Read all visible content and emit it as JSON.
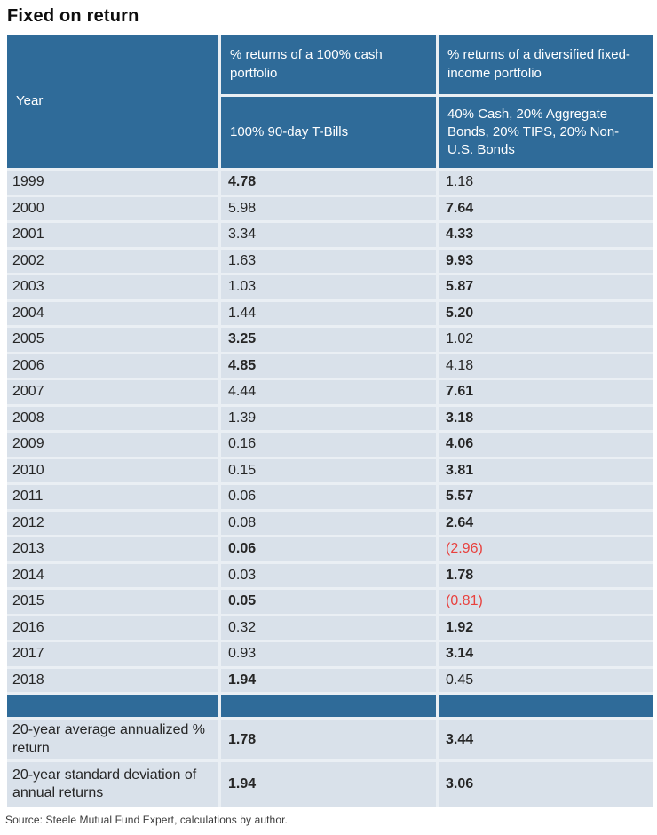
{
  "title": "Fixed on return",
  "source": "Source: Steele Mutual Fund Expert, calculations by author.",
  "colors": {
    "header_blue": "#2f6b99",
    "row_background": "#d9e1ea",
    "divider": "#eaeff4",
    "negative_red": "#e8413e"
  },
  "table": {
    "columns": {
      "year_label": "Year",
      "cash_group": "% returns of a 100% cash portfolio",
      "cash_sub": "100% 90-day T-Bills",
      "fixed_group": "% returns of a diversified fixed-income portfolio",
      "fixed_sub": "40% Cash, 20% Aggregate Bonds, 20% TIPS, 20% Non-U.S. Bonds"
    },
    "rows": [
      {
        "year": "1999",
        "cash": "4.78",
        "cash_bold": true,
        "fixed": "1.18",
        "fixed_bold": false,
        "fixed_negative": false
      },
      {
        "year": "2000",
        "cash": "5.98",
        "cash_bold": false,
        "fixed": "7.64",
        "fixed_bold": true,
        "fixed_negative": false
      },
      {
        "year": "2001",
        "cash": "3.34",
        "cash_bold": false,
        "fixed": "4.33",
        "fixed_bold": true,
        "fixed_negative": false
      },
      {
        "year": "2002",
        "cash": "1.63",
        "cash_bold": false,
        "fixed": "9.93",
        "fixed_bold": true,
        "fixed_negative": false
      },
      {
        "year": "2003",
        "cash": "1.03",
        "cash_bold": false,
        "fixed": "5.87",
        "fixed_bold": true,
        "fixed_negative": false
      },
      {
        "year": "2004",
        "cash": "1.44",
        "cash_bold": false,
        "fixed": "5.20",
        "fixed_bold": true,
        "fixed_negative": false
      },
      {
        "year": "2005",
        "cash": "3.25",
        "cash_bold": true,
        "fixed": "1.02",
        "fixed_bold": false,
        "fixed_negative": false
      },
      {
        "year": "2006",
        "cash": "4.85",
        "cash_bold": true,
        "fixed": "4.18",
        "fixed_bold": false,
        "fixed_negative": false
      },
      {
        "year": "2007",
        "cash": "4.44",
        "cash_bold": false,
        "fixed": "7.61",
        "fixed_bold": true,
        "fixed_negative": false
      },
      {
        "year": "2008",
        "cash": "1.39",
        "cash_bold": false,
        "fixed": "3.18",
        "fixed_bold": true,
        "fixed_negative": false
      },
      {
        "year": "2009",
        "cash": "0.16",
        "cash_bold": false,
        "fixed": "4.06",
        "fixed_bold": true,
        "fixed_negative": false
      },
      {
        "year": "2010",
        "cash": "0.15",
        "cash_bold": false,
        "fixed": "3.81",
        "fixed_bold": true,
        "fixed_negative": false
      },
      {
        "year": "2011",
        "cash": "0.06",
        "cash_bold": false,
        "fixed": "5.57",
        "fixed_bold": true,
        "fixed_negative": false
      },
      {
        "year": "2012",
        "cash": "0.08",
        "cash_bold": false,
        "fixed": "2.64",
        "fixed_bold": true,
        "fixed_negative": false
      },
      {
        "year": "2013",
        "cash": "0.06",
        "cash_bold": true,
        "fixed": "(2.96)",
        "fixed_bold": false,
        "fixed_negative": true
      },
      {
        "year": "2014",
        "cash": "0.03",
        "cash_bold": false,
        "fixed": "1.78",
        "fixed_bold": true,
        "fixed_negative": false
      },
      {
        "year": "2015",
        "cash": "0.05",
        "cash_bold": true,
        "fixed": "(0.81)",
        "fixed_bold": false,
        "fixed_negative": true
      },
      {
        "year": "2016",
        "cash": "0.32",
        "cash_bold": false,
        "fixed": "1.92",
        "fixed_bold": true,
        "fixed_negative": false
      },
      {
        "year": "2017",
        "cash": "0.93",
        "cash_bold": false,
        "fixed": "3.14",
        "fixed_bold": true,
        "fixed_negative": false
      },
      {
        "year": "2018",
        "cash": "1.94",
        "cash_bold": true,
        "fixed": "0.45",
        "fixed_bold": false,
        "fixed_negative": false
      }
    ],
    "summary": [
      {
        "label": "20-year average annualized % return",
        "cash": "1.78",
        "cash_bold": true,
        "fixed": "3.44",
        "fixed_bold": true
      },
      {
        "label": "20-year standard deviation of annual returns",
        "cash": "1.94",
        "cash_bold": true,
        "fixed": "3.06",
        "fixed_bold": true
      }
    ]
  }
}
